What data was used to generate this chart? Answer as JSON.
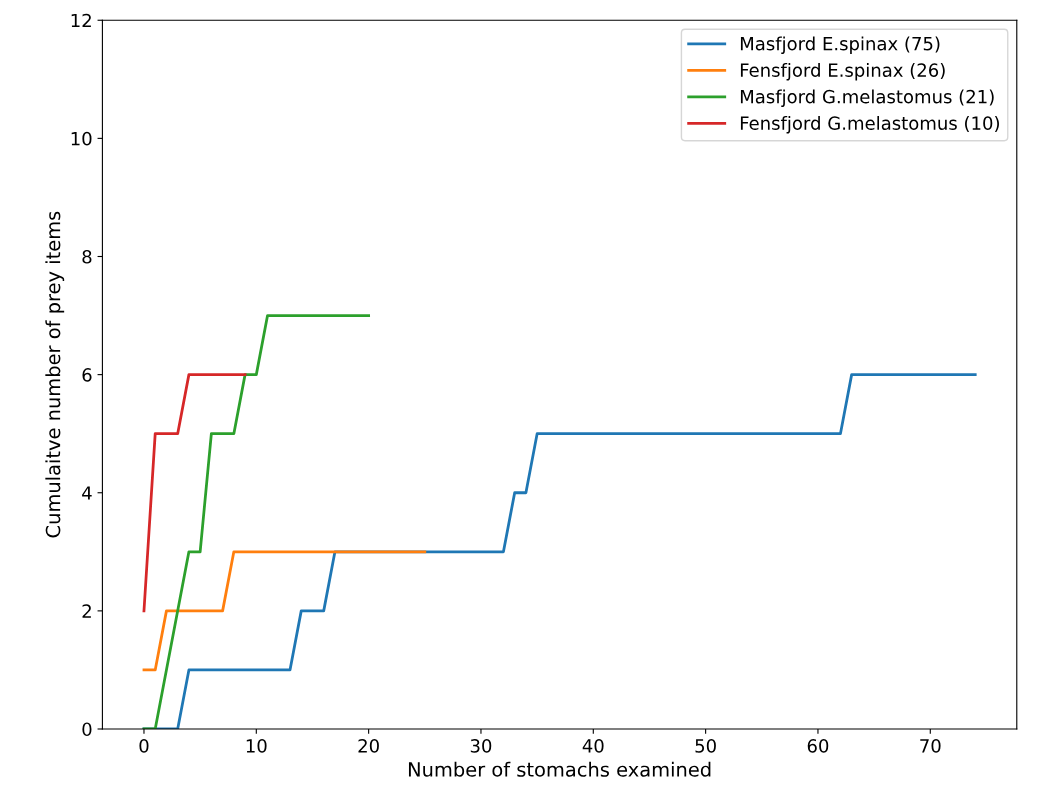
{
  "chart_data": {
    "type": "line",
    "xlabel": "Number of stomachs examined",
    "ylabel": "Cumulaitve number of prey items",
    "xlim": [
      -3.7,
      77.7
    ],
    "xticks": [
      0,
      10,
      20,
      30,
      40,
      50,
      60,
      70
    ],
    "ylim": [
      0,
      12
    ],
    "yticks": [
      0,
      2,
      4,
      6,
      8,
      10,
      12
    ],
    "legend": "top right",
    "grid": false,
    "series": [
      {
        "name": "Masfjord E.spinax (75)",
        "color": "#1f77b4",
        "x": [
          0,
          3,
          4,
          13,
          14,
          16,
          17,
          32,
          33,
          34,
          35,
          62,
          63,
          74
        ],
        "values": [
          0,
          0,
          1,
          1,
          2,
          2,
          3,
          3,
          4,
          4,
          5,
          5,
          6,
          6
        ]
      },
      {
        "name": "Fensfjord E.spinax (26)",
        "color": "#ff7f0e",
        "x": [
          0,
          1,
          2,
          7,
          8,
          25
        ],
        "values": [
          1,
          1,
          2,
          2,
          3,
          3
        ]
      },
      {
        "name": "Masfjord G.melastomus (21)",
        "color": "#2ca02c",
        "x": [
          0,
          1,
          4,
          5,
          6,
          8,
          9,
          10,
          11,
          20
        ],
        "values": [
          0,
          0,
          3,
          3,
          5,
          5,
          6,
          6,
          7,
          7
        ]
      },
      {
        "name": "Fensfjord G.melastomus (10)",
        "color": "#d62728",
        "x": [
          0,
          1,
          3,
          4,
          9
        ],
        "values": [
          2,
          5,
          5,
          6,
          6
        ]
      }
    ]
  }
}
